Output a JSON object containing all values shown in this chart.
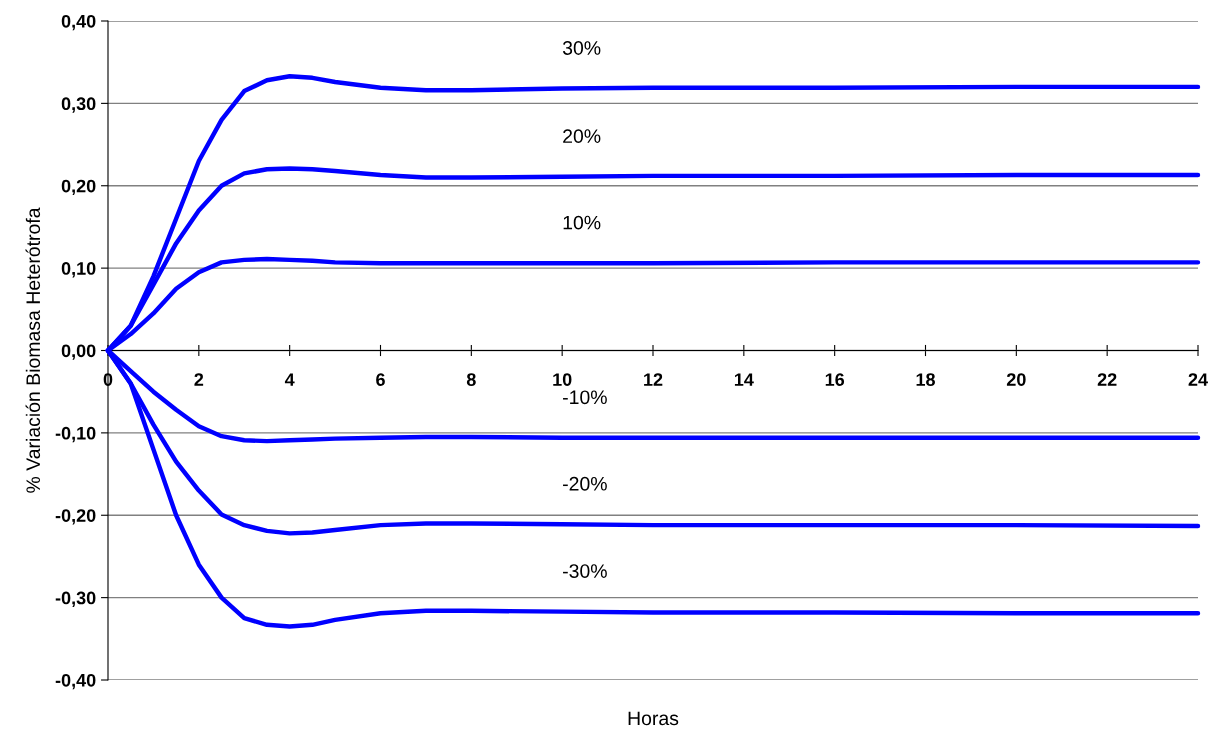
{
  "chart_data": {
    "type": "line",
    "xlabel": "Horas",
    "ylabel": "% Variación Biomasa Heterótrofa",
    "xlim": [
      0,
      24
    ],
    "xticks": [
      0,
      2,
      4,
      6,
      8,
      10,
      12,
      14,
      16,
      18,
      20,
      22,
      24
    ],
    "ylim": [
      -0.4,
      0.4
    ],
    "yticks": [
      {
        "value": -0.4,
        "label": "-0,40"
      },
      {
        "value": -0.3,
        "label": "-0,30"
      },
      {
        "value": -0.2,
        "label": "-0,20"
      },
      {
        "value": -0.1,
        "label": "-0,10"
      },
      {
        "value": 0,
        "label": "0,00"
      },
      {
        "value": 0.1,
        "label": "0,10"
      },
      {
        "value": 0.2,
        "label": "0,20"
      },
      {
        "value": 0.3,
        "label": "0,30"
      },
      {
        "value": 0.4,
        "label": "0,40"
      }
    ],
    "grid": "y",
    "legend": false,
    "marker": "none",
    "line_style": "solid",
    "x": [
      0,
      0.5,
      1,
      1.5,
      2,
      2.5,
      3,
      3.5,
      4,
      4.5,
      5,
      6,
      7,
      8,
      10,
      12,
      16,
      20,
      24
    ],
    "series": [
      {
        "name": "30%",
        "color": "#0000ff",
        "values": [
          0,
          0.03,
          0.09,
          0.16,
          0.23,
          0.28,
          0.315,
          0.328,
          0.333,
          0.331,
          0.326,
          0.319,
          0.316,
          0.316,
          0.318,
          0.319,
          0.319,
          0.32,
          0.32
        ]
      },
      {
        "name": "20%",
        "color": "#0000ff",
        "values": [
          0,
          0.03,
          0.08,
          0.13,
          0.17,
          0.2,
          0.215,
          0.22,
          0.221,
          0.22,
          0.218,
          0.213,
          0.21,
          0.21,
          0.211,
          0.212,
          0.212,
          0.213,
          0.213
        ]
      },
      {
        "name": "10%",
        "color": "#0000ff",
        "values": [
          0,
          0.02,
          0.045,
          0.075,
          0.095,
          0.107,
          0.11,
          0.111,
          0.11,
          0.109,
          0.107,
          0.106,
          0.106,
          0.106,
          0.106,
          0.106,
          0.107,
          0.107,
          0.107
        ]
      },
      {
        "name": "-10%",
        "color": "#0000ff",
        "values": [
          0,
          -0.025,
          -0.05,
          -0.072,
          -0.092,
          -0.104,
          -0.109,
          -0.11,
          -0.109,
          -0.108,
          -0.107,
          -0.106,
          -0.105,
          -0.105,
          -0.106,
          -0.106,
          -0.106,
          -0.106,
          -0.106
        ]
      },
      {
        "name": "-20%",
        "color": "#0000ff",
        "values": [
          0,
          -0.04,
          -0.09,
          -0.135,
          -0.17,
          -0.199,
          -0.212,
          -0.219,
          -0.222,
          -0.221,
          -0.218,
          -0.212,
          -0.21,
          -0.21,
          -0.211,
          -0.212,
          -0.212,
          -0.212,
          -0.213
        ]
      },
      {
        "name": "-30%",
        "color": "#0000ff",
        "values": [
          0,
          -0.04,
          -0.12,
          -0.2,
          -0.26,
          -0.3,
          -0.325,
          -0.333,
          -0.335,
          -0.333,
          -0.327,
          -0.319,
          -0.316,
          -0.316,
          -0.317,
          -0.318,
          -0.318,
          -0.319,
          -0.319
        ]
      }
    ]
  }
}
